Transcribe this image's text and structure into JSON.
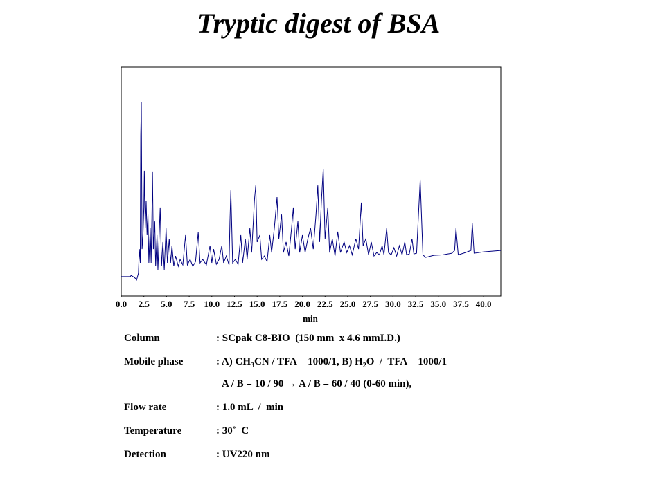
{
  "chart_data": {
    "type": "line",
    "title": "Tryptic digest of BSA",
    "xlabel": "min",
    "color": "#000080",
    "xlim": [
      0,
      41.9
    ],
    "ylim": [
      0,
      100
    ],
    "xticks": [
      {
        "value": 0,
        "label": "0.0"
      },
      2.5,
      {
        "value": 5,
        "label": "5.0"
      },
      7.5,
      {
        "value": 10,
        "label": "10.0"
      },
      12.5,
      {
        "value": 15,
        "label": "15.0"
      },
      17.5,
      {
        "value": 20,
        "label": "20.0"
      },
      22.5,
      {
        "value": 25,
        "label": "25.0"
      },
      27.5,
      {
        "value": 30,
        "label": "30.0"
      },
      32.5,
      {
        "value": 35,
        "label": "35.0"
      },
      37.5,
      {
        "value": 40,
        "label": "40.0"
      }
    ],
    "x": [
      0.0,
      1.0,
      1.1,
      1.5,
      1.7,
      1.9,
      2.0,
      2.1,
      2.15,
      2.22,
      2.3,
      2.4,
      2.5,
      2.55,
      2.65,
      2.75,
      2.85,
      2.95,
      3.05,
      3.2,
      3.3,
      3.4,
      3.45,
      3.55,
      3.7,
      3.8,
      3.95,
      4.05,
      4.3,
      4.45,
      4.6,
      4.75,
      4.95,
      5.1,
      5.3,
      5.45,
      5.6,
      5.8,
      6.0,
      6.3,
      6.5,
      6.8,
      7.1,
      7.3,
      7.6,
      7.9,
      8.2,
      8.5,
      8.7,
      9.0,
      9.4,
      9.8,
      10.0,
      10.2,
      10.5,
      10.8,
      11.1,
      11.3,
      11.6,
      11.9,
      12.0,
      12.1,
      12.3,
      12.6,
      12.9,
      13.2,
      13.4,
      13.7,
      13.9,
      14.2,
      14.4,
      14.7,
      14.85,
      15.0,
      15.3,
      15.5,
      15.8,
      16.1,
      16.4,
      16.6,
      16.9,
      17.2,
      17.4,
      17.7,
      17.9,
      18.2,
      18.5,
      18.8,
      19.0,
      19.2,
      19.5,
      19.7,
      20.0,
      20.3,
      20.6,
      20.9,
      21.2,
      21.5,
      21.7,
      21.9,
      22.1,
      22.3,
      22.5,
      22.8,
      23.0,
      23.3,
      23.6,
      23.9,
      24.2,
      24.6,
      24.9,
      25.2,
      25.5,
      25.9,
      26.2,
      26.5,
      26.7,
      27.0,
      27.3,
      27.6,
      27.9,
      28.2,
      28.5,
      28.8,
      29.0,
      29.3,
      29.5,
      29.8,
      30.1,
      30.4,
      30.7,
      31.0,
      31.3,
      31.5,
      31.8,
      32.1,
      32.3,
      32.6,
      33.0,
      33.3,
      33.6,
      34.5,
      35.5,
      36.5,
      36.8,
      36.95,
      37.2,
      38.0,
      38.6,
      38.75,
      38.95,
      40.0,
      41.9
    ],
    "values": [
      8.5,
      8.5,
      9,
      8,
      7,
      10,
      20.5,
      14.5,
      70,
      84.6,
      20.5,
      26.6,
      38.7,
      54.7,
      29.6,
      41.7,
      26.6,
      35.6,
      14.5,
      29.6,
      14.5,
      38.7,
      54.4,
      20.5,
      32.6,
      13,
      26.6,
      11.5,
      38.7,
      13,
      23.6,
      11.5,
      29.6,
      14.5,
      25,
      14.5,
      22,
      13,
      17.5,
      13,
      16,
      13.6,
      26.6,
      13.6,
      16,
      13,
      15,
      27.8,
      14.5,
      16,
      13.6,
      22,
      14.5,
      20.5,
      13.9,
      16,
      22,
      14.5,
      17.5,
      13.6,
      32.6,
      46.2,
      14.5,
      16,
      13.9,
      26.6,
      14.5,
      25,
      16,
      29.6,
      19,
      41.7,
      48.3,
      23.6,
      26.6,
      16,
      17.5,
      15,
      26.6,
      19,
      29.6,
      43.2,
      25,
      35.6,
      19,
      23.6,
      17.5,
      29.6,
      38.7,
      20.5,
      32.6,
      19,
      26.6,
      19,
      25,
      29.6,
      20.5,
      35.6,
      48.3,
      23.6,
      41.7,
      55.6,
      25,
      38.7,
      19,
      25,
      17.5,
      28.1,
      19,
      23.6,
      19,
      22,
      18,
      25,
      20.5,
      40.8,
      22,
      25,
      18,
      23.6,
      17.5,
      19,
      18,
      22,
      18,
      29.6,
      19,
      18,
      21.1,
      17.5,
      22,
      18,
      23.6,
      18,
      18.4,
      25,
      18.4,
      18.7,
      50.8,
      18,
      16.9,
      17.8,
      18,
      18.7,
      19.9,
      29.6,
      18,
      19,
      19.9,
      31.7,
      18.7,
      19.3,
      19.9
    ]
  },
  "conditions": {
    "column": {
      "label": "Column",
      "value": ": SCpak C8-BIO  (150 mm  x 4.6 mmI.D.)"
    },
    "mobile_phase": {
      "label": "Mobile phase",
      "parts": [
        ": A) CH",
        "3",
        "CN / TFA = 1000/1, B) H",
        "2",
        "O  /  TFA = 1000/1"
      ],
      "line2": "A / B = 10 / 90 → A / B = 60 / 40 (0-60 min),"
    },
    "flow_rate": {
      "label": "Flow rate",
      "value": ": 1.0 mL  /  min"
    },
    "temperature": {
      "label": "Temperature",
      "value": ": 30˚  C"
    },
    "detection": {
      "label": "Detection",
      "value": ": UV220 nm"
    }
  }
}
